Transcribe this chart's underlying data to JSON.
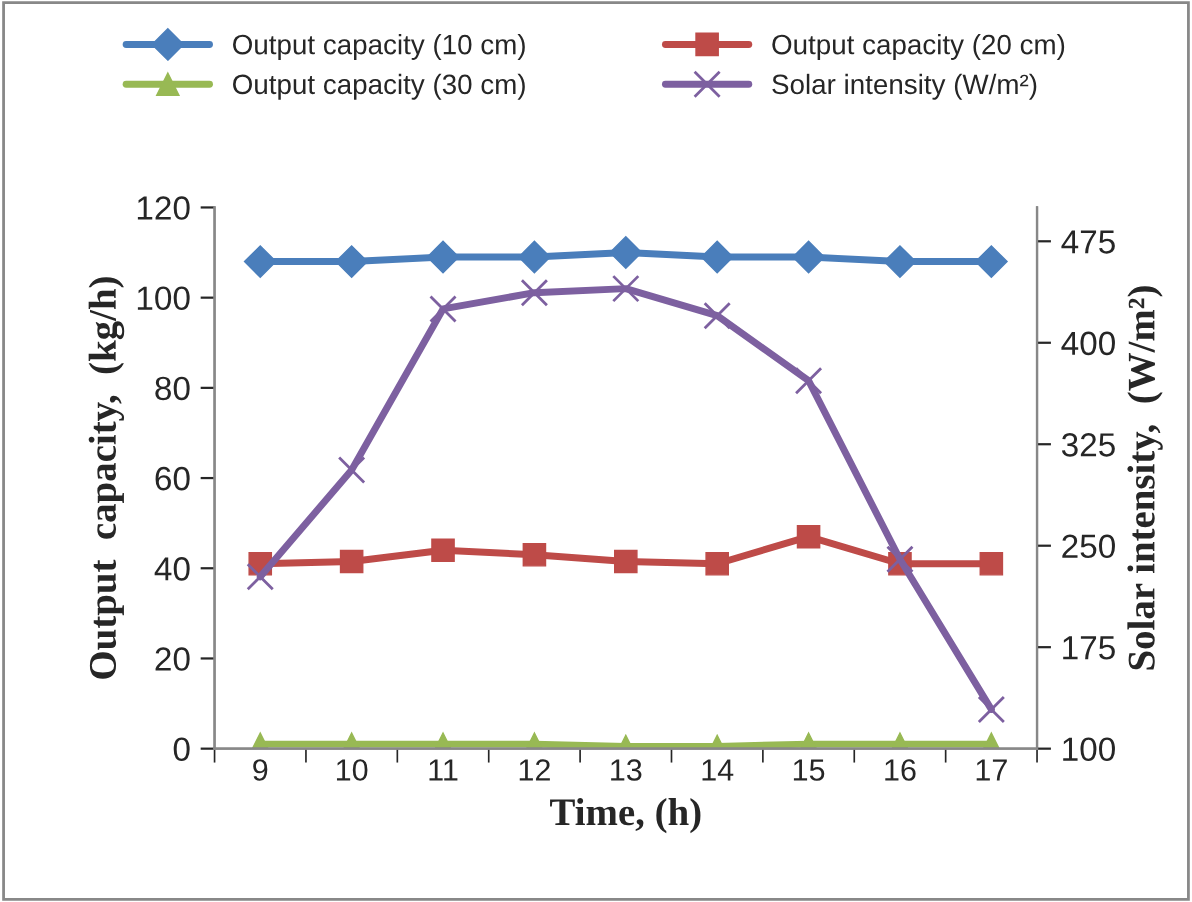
{
  "chart_data": {
    "type": "line",
    "xlabel": "Time, (h)",
    "ylabel": "Output  capacity,  (kg/h)",
    "y2label": "Solar intensity,  (W/m²)",
    "categories": [
      "9",
      "10",
      "11",
      "12",
      "13",
      "14",
      "15",
      "16",
      "17"
    ],
    "ylim": [
      0,
      120
    ],
    "yticks": [
      0,
      20,
      40,
      60,
      80,
      100,
      120
    ],
    "y2lim": [
      100,
      500
    ],
    "y2ticks": [
      100,
      175,
      250,
      325,
      400,
      475
    ],
    "legend": "top",
    "grid": false,
    "series": [
      {
        "name": "Output capacity (10 cm)",
        "color": "#4a7ebb",
        "marker": "diamond",
        "values": [
          108,
          108,
          109,
          109,
          110,
          109,
          109,
          108,
          108
        ]
      },
      {
        "name": "Output capacity (20 cm)",
        "color": "#be4b48",
        "marker": "square",
        "values": [
          41,
          41.5,
          44,
          43,
          41.5,
          41,
          47,
          41,
          41
        ]
      },
      {
        "name": "Output capacity (30 cm)",
        "color": "#98b954",
        "marker": "triangle",
        "values": [
          1,
          1,
          1,
          1,
          0.5,
          0.5,
          1,
          1,
          1
        ]
      },
      {
        "name": "Solar intensity (W/m²)",
        "color": "#7d60a0",
        "marker": "cross",
        "axis": "y2",
        "values": [
          227,
          306,
          425,
          437,
          440,
          420,
          372,
          240,
          129
        ]
      }
    ]
  }
}
